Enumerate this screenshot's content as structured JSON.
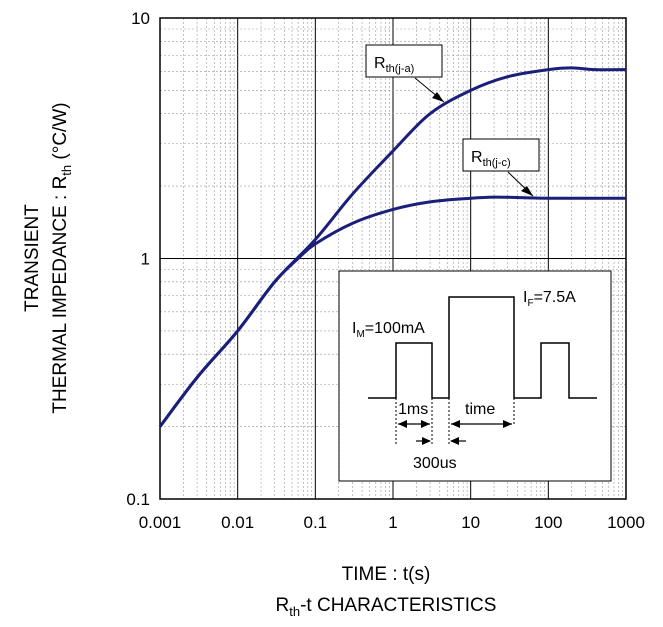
{
  "chart_data": {
    "type": "line",
    "title": "",
    "xlabel": "TIME : t(s)",
    "ylabel_line1": "TRANSIENT",
    "ylabel_line2": "THERMAL IMPEDANCE : R",
    "ylabel_sub": "th",
    "ylabel_unit": " (°C/W)",
    "caption": {
      "main": "R",
      "sub": "th",
      "rest": "-t CHARACTERISTICS"
    },
    "x_scale": "log",
    "y_scale": "log",
    "xlim": [
      0.001,
      1000
    ],
    "ylim": [
      0.1,
      10
    ],
    "x_ticks": [
      "0.001",
      "0.01",
      "0.1",
      "1",
      "10",
      "100",
      "1000"
    ],
    "y_ticks": [
      "0.1",
      "1",
      "10"
    ],
    "grid": true,
    "series": [
      {
        "name": "R",
        "name_sub": "th(j-a)",
        "color": "#1a1f7a",
        "x": [
          0.001,
          0.003,
          0.01,
          0.03,
          0.1,
          0.3,
          1,
          3,
          10,
          30,
          100,
          200,
          400,
          1000
        ],
        "y": [
          0.2,
          0.32,
          0.5,
          0.8,
          1.2,
          1.85,
          2.8,
          4.0,
          5.0,
          5.7,
          6.1,
          6.2,
          6.1,
          6.1
        ]
      },
      {
        "name": "R",
        "name_sub": "th(j-c)",
        "color": "#1a1f7a",
        "x": [
          0.001,
          0.003,
          0.01,
          0.03,
          0.06,
          0.1,
          0.3,
          1,
          3,
          10,
          20,
          50,
          100,
          1000
        ],
        "y": [
          0.2,
          0.32,
          0.5,
          0.8,
          1.0,
          1.15,
          1.4,
          1.6,
          1.72,
          1.78,
          1.8,
          1.79,
          1.78,
          1.78
        ]
      }
    ],
    "inset": {
      "im_label": {
        "main": "I",
        "sub": "M",
        "rest": "=100mA"
      },
      "if_label": {
        "main": "I",
        "sub": "F",
        "rest": "=7.5A"
      },
      "t1_label": "1ms",
      "t2_label": "300us",
      "time_label": "time"
    }
  }
}
